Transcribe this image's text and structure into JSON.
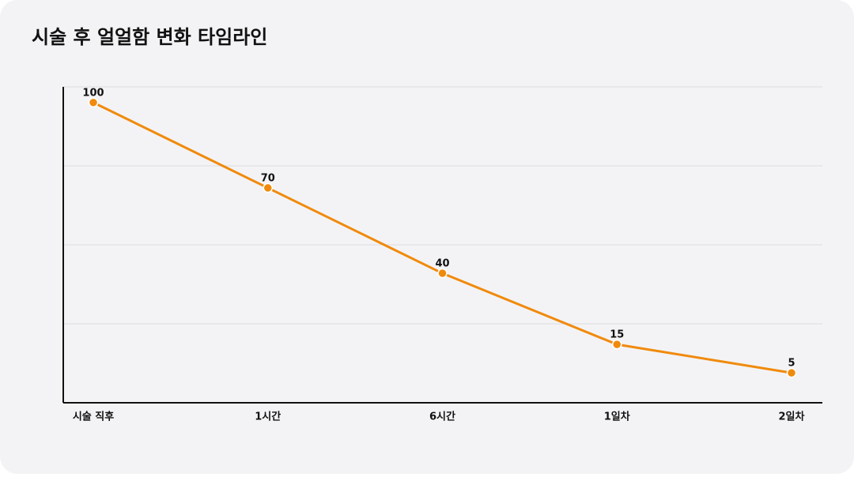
{
  "chart_data": {
    "type": "line",
    "title": "시술 후 얼얼함 변화 타임라인",
    "categories": [
      "시술 직후",
      "1시간",
      "6시간",
      "1일차",
      "2일차"
    ],
    "series": [
      {
        "color": "#f08a0c",
        "values": [
          100,
          70,
          40,
          15,
          5
        ]
      }
    ],
    "ylim": [
      -5.5,
      105.5
    ],
    "grid": true
  }
}
